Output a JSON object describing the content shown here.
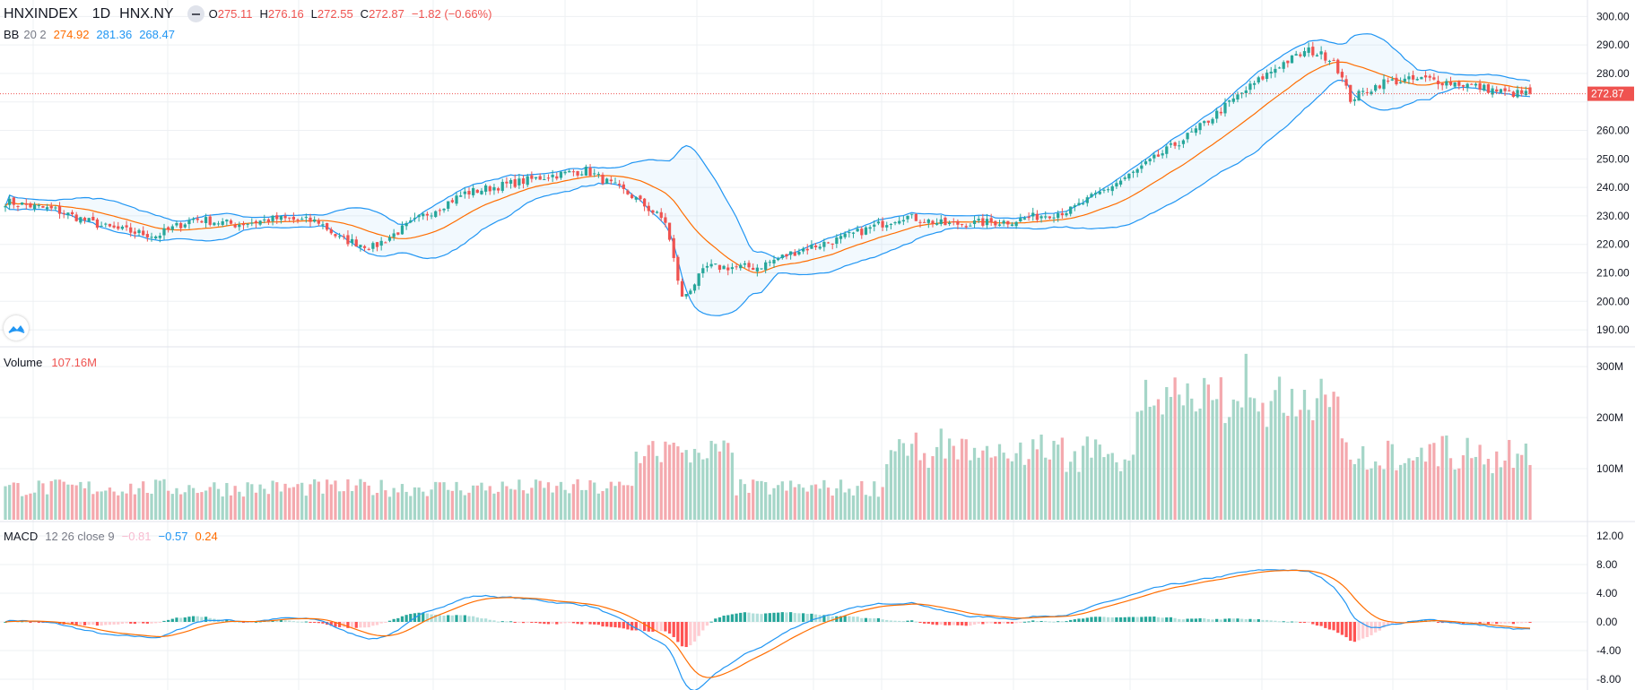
{
  "header": {
    "symbol": "HNXINDEX",
    "interval": "1D",
    "exchange": "HNX.NY",
    "open_label": "O",
    "open": "275.11",
    "high_label": "H",
    "high": "276.16",
    "low_label": "L",
    "low": "272.55",
    "close_label": "C",
    "close": "272.87",
    "change": "−1.82 (−0.66%)"
  },
  "bb_legend": {
    "name": "BB",
    "params": "20 2",
    "basis": "274.92",
    "upper": "281.36",
    "lower": "268.47"
  },
  "volume_legend": {
    "name": "Volume",
    "value": "107.16M"
  },
  "macd_legend": {
    "name": "MACD",
    "params": "12 26 close 9",
    "hist": "−0.81",
    "macd": "−0.57",
    "signal": "0.24"
  },
  "price_tag": "272.87",
  "colors": {
    "up": "#26a69a",
    "down": "#ef5350",
    "up_vol": "#a5d6c8",
    "down_vol": "#f4a9ae",
    "bb_band": "#2196f3",
    "bb_basis": "#ff6d00",
    "macd": "#2196f3",
    "signal": "#ff6d00",
    "last_price": "#ef5350"
  },
  "icons": {
    "logo": "tradingview-cloud-icon",
    "collapse": "minus-icon"
  },
  "chart_data": [
    {
      "type": "candlestick",
      "series": [
        {
          "name": "HNXINDEX",
          "ohlc_keyframes": [
            [
              0,
              235
            ],
            [
              12,
              232
            ],
            [
              24,
              226
            ],
            [
              36,
              223
            ],
            [
              45,
              229
            ],
            [
              55,
              227
            ],
            [
              65,
              229
            ],
            [
              75,
              228
            ],
            [
              80,
              222
            ],
            [
              88,
              219
            ],
            [
              100,
              230
            ],
            [
              110,
              238
            ],
            [
              120,
              241
            ],
            [
              130,
              244
            ],
            [
              139,
              246
            ],
            [
              150,
              237
            ],
            [
              158,
              228
            ],
            [
              162,
              201
            ],
            [
              168,
              212
            ],
            [
              180,
              212
            ],
            [
              190,
              218
            ],
            [
              200,
              222
            ],
            [
              215,
              230
            ],
            [
              225,
              227
            ],
            [
              240,
              228
            ],
            [
              255,
              232
            ],
            [
              270,
              245
            ],
            [
              285,
              260
            ],
            [
              295,
              272
            ],
            [
              305,
              283
            ],
            [
              312,
              288
            ],
            [
              318,
              285
            ],
            [
              322,
              271
            ],
            [
              330,
              277
            ],
            [
              340,
              278
            ],
            [
              350,
              276
            ],
            [
              360,
              273
            ],
            [
              365,
              272.87
            ]
          ]
        }
      ],
      "ylim": [
        185,
        302
      ],
      "yticks": [
        "300.00",
        "290.00",
        "280.00",
        "270.00",
        "260.00",
        "250.00",
        "240.00",
        "230.00",
        "220.00",
        "210.00",
        "200.00",
        "190.00"
      ],
      "overlays": [
        "BB basis",
        "BB upper",
        "BB lower"
      ],
      "grid": true
    },
    {
      "type": "bar",
      "series": [
        {
          "name": "Volume",
          "note": "one bar per candle, colored by candle direction"
        }
      ],
      "ylim": [
        0,
        330
      ],
      "yticks": [
        "300M",
        "200M",
        "100M"
      ]
    },
    {
      "type": "line",
      "series": [
        {
          "name": "MACD"
        },
        {
          "name": "signal"
        },
        {
          "name": "histogram"
        }
      ],
      "ylim": [
        -9,
        13
      ],
      "yticks": [
        "12.00",
        "8.00",
        "4.00",
        "0.00",
        "-4.00",
        "-8.00"
      ]
    }
  ]
}
